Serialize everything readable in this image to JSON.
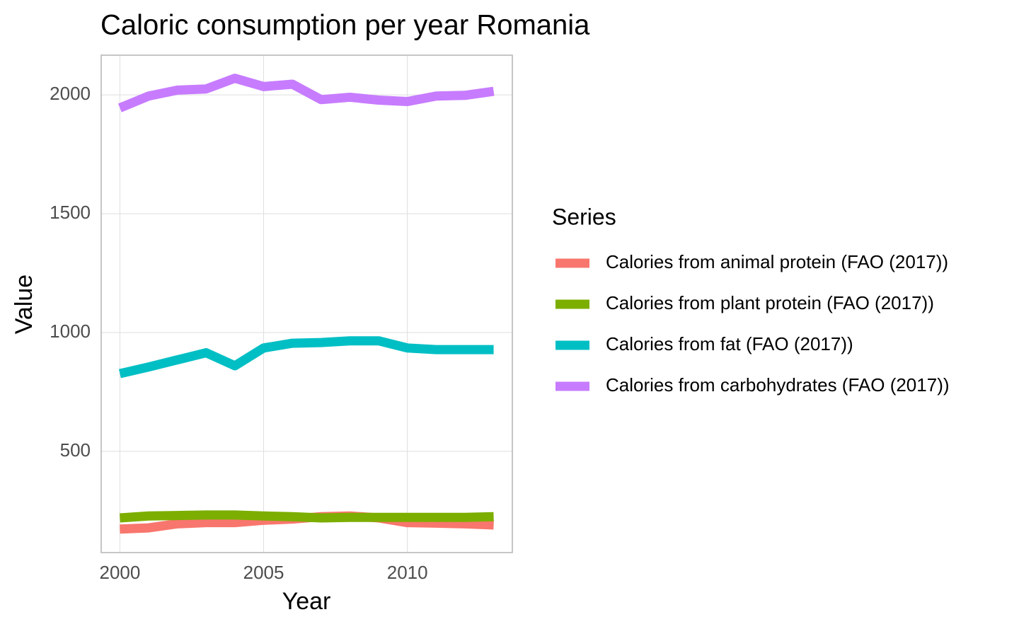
{
  "chart_data": {
    "type": "line",
    "title": "Caloric consumption per year Romania",
    "x_label": "Year",
    "y_label": "Value",
    "legend_title": "Series",
    "x": [
      2000,
      2001,
      2002,
      2003,
      2004,
      2005,
      2006,
      2007,
      2008,
      2009,
      2010,
      2011,
      2012,
      2013
    ],
    "series": [
      {
        "name": "Calories from animal protein (FAO (2017))",
        "color": "#F8766D",
        "values": [
          173,
          178,
          195,
          200,
          200,
          210,
          215,
          225,
          228,
          220,
          200,
          198,
          195,
          190
        ]
      },
      {
        "name": "Calories from plant protein (FAO (2017))",
        "color": "#7CAE00",
        "values": [
          220,
          228,
          230,
          232,
          232,
          228,
          225,
          220,
          222,
          222,
          222,
          222,
          222,
          225
        ]
      },
      {
        "name": "Calories from fat (FAO (2017))",
        "color": "#00BFC4",
        "values": [
          827,
          855,
          885,
          915,
          860,
          935,
          955,
          958,
          965,
          965,
          935,
          928,
          928,
          928
        ]
      },
      {
        "name": "Calories from carbohydrates (FAO (2017))",
        "color": "#C77CFF",
        "values": [
          1945,
          1995,
          2020,
          2025,
          2070,
          2035,
          2045,
          1980,
          1990,
          1978,
          1972,
          1995,
          1998,
          2015
        ]
      }
    ],
    "xlim": [
      1999.35,
      2013.65
    ],
    "xticks": [
      2000,
      2005,
      2010
    ],
    "ylim": [
      74,
      2167
    ],
    "yticks": [
      500,
      1000,
      1500,
      2000
    ],
    "grid": true,
    "legend": "right"
  }
}
